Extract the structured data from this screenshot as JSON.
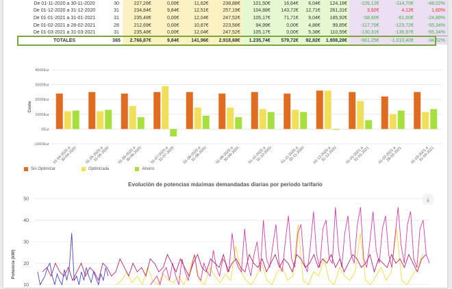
{
  "summary_table": {
    "rows": [
      {
        "cells": [
          "De 01-11-2020 a 30-11-2020",
          "30",
          "227,26€",
          "0,00€",
          "11,62€",
          "238,88€",
          "101,50€",
          "16,64€",
          "6,04€",
          "124,18€",
          "-109,12€",
          "-114,70€",
          "-48,02%"
        ],
        "neg": [
          10,
          11,
          12
        ],
        "pos": []
      },
      {
        "cells": [
          "De 01-12-2020 a 31-12-2020",
          "31",
          "234,84€",
          "9,84€",
          "12,51€",
          "257,19€",
          "104,88€",
          "143,72€",
          "12,71€",
          "261,31€",
          "3,92€",
          "4,12€",
          "1,60%"
        ],
        "neg": [],
        "pos": [
          10,
          11,
          12
        ]
      },
      {
        "cells": [
          "De 01-01-2021 a 31-01-2021",
          "31",
          "235,48€",
          "0,00€",
          "12,04€",
          "247,52€",
          "105,17€",
          "71,71€",
          "9,04€",
          "185,92€",
          "-58,60€",
          "-61,60€",
          "-24,89%"
        ],
        "neg": [
          10,
          11,
          12
        ],
        "pos": []
      },
      {
        "cells": [
          "De 01-02-2021 a 28-02-2021",
          "28",
          "212,69€",
          "0,00€",
          "10,87€",
          "223,56€",
          "94,99€",
          "0,00€",
          "4,86€",
          "99,85€",
          "-117,70€",
          "-123,72€",
          "-55,34%"
        ],
        "neg": [
          10,
          11,
          12
        ],
        "pos": []
      },
      {
        "cells": [
          "De 01-03-2021 a 31-03-2021",
          "31",
          "235,48€",
          "0,00€",
          "12,04€",
          "247,52€",
          "105,17€",
          "0,00€",
          "5,38€",
          "110,55€",
          "-130,31€",
          "-136,97€",
          "-55,34%"
        ],
        "neg": [
          10,
          11,
          12
        ],
        "pos": []
      }
    ],
    "totals": {
      "cells": [
        "TOTALES",
        "365",
        "2.766,87€",
        "9,84€",
        "141,96€",
        "2.918,68€",
        "1.235,74€",
        "579,72€",
        "92,82€",
        "1.908,28€",
        "-961,25€",
        "-1.010,40€",
        "-34,62%"
      ],
      "neg": [
        10,
        11,
        12
      ],
      "pos": []
    }
  },
  "colors": {
    "sin_optimizar": "#e06c22",
    "optimizada": "#f1df5a",
    "ahorro": "#a7df3e",
    "line_blue": "#4646c8",
    "line_yellow": "#f3dc3c",
    "line_pink": "#d33aa8",
    "line_magenta": "#b0256a"
  },
  "chart_data": [
    {
      "type": "bar",
      "title": "",
      "xlabel": "",
      "ylabel": "Coste",
      "ylim": [
        -1000,
        4000
      ],
      "y_ticks": [
        "4000Eur",
        "3000Eur",
        "2000Eur",
        "1000Eur",
        "0Eur",
        "-1000Eur"
      ],
      "categories": [
        "01-04-2020 a 30-04-2020",
        "01-05-2020 a 31-05-2020",
        "01-06-2020 a 30-06-2020",
        "01-07-2020 a 31-07-2020",
        "01-08-2020 a 31-08-2020",
        "01-09-2020 a 30-09-2020",
        "01-10-2020 a 31-10-2020",
        "01-11-2020 a 30-11-2020",
        "01-12-2020 a 31-12-2020",
        "01-01-2021 a 31-01-2021",
        "01-02-2021 a 28-02-2021",
        "01-03-2021 a 31-03-2021"
      ],
      "series": [
        {
          "name": "Sin Optimizar",
          "color_key": "sin_optimizar",
          "values": [
            2400,
            2500,
            2400,
            2500,
            2500,
            2400,
            2500,
            2400,
            2600,
            2500,
            2200,
            2500
          ]
        },
        {
          "name": "Optimizada",
          "color_key": "optimizada",
          "values": [
            1200,
            1200,
            1550,
            2900,
            1450,
            1450,
            1350,
            1300,
            2600,
            1900,
            1000,
            1150
          ]
        },
        {
          "name": "Ahorro",
          "color_key": "ahorro",
          "values": [
            1250,
            1300,
            800,
            -500,
            900,
            800,
            1150,
            1150,
            -50,
            600,
            1250,
            1350
          ]
        }
      ],
      "legend_position": "bottom-left",
      "grid": true
    },
    {
      "type": "line",
      "title": "Evolución de potencias máximas demandadas diarias por periodo tarifario",
      "xlabel": "",
      "ylabel": "Potencia (kW)",
      "ylim": [
        8,
        50
      ],
      "y_ticks": [
        "50",
        "40",
        "30",
        "20",
        "10"
      ],
      "series": [
        {
          "color_key": "line_blue",
          "values": [
            16,
            10,
            12,
            14,
            18,
            20,
            14,
            10,
            15,
            12,
            10,
            17,
            12,
            18,
            34,
            12,
            14,
            10,
            16,
            12,
            18,
            14,
            11,
            16,
            13,
            10,
            15,
            12,
            18,
            14
          ]
        },
        {
          "color_key": "line_yellow",
          "values": [
            10,
            12,
            16,
            11,
            14,
            10,
            18,
            12,
            10,
            15,
            12,
            11,
            14,
            10,
            16,
            24,
            12,
            10,
            18,
            14,
            11,
            15,
            12,
            28,
            16,
            12,
            10,
            14,
            20,
            12,
            10,
            16,
            18,
            12,
            14,
            38,
            12,
            10,
            16,
            14,
            22,
            12,
            10,
            18,
            14,
            12,
            16,
            34,
            12,
            10,
            14,
            18,
            12,
            16,
            36,
            12,
            10,
            14,
            18,
            24
          ]
        },
        {
          "color_key": "line_pink",
          "values": [
            10,
            12,
            14,
            10,
            16,
            18,
            12,
            20,
            14,
            10,
            22,
            16,
            12,
            18,
            24,
            14,
            12,
            20,
            16,
            14,
            26,
            18,
            14,
            22,
            20,
            16,
            34,
            22,
            18,
            16,
            36,
            20,
            14,
            24,
            30,
            16,
            40,
            22,
            18,
            28,
            38,
            20,
            16,
            30,
            42,
            22,
            18,
            34,
            38,
            20,
            16,
            28,
            44,
            24,
            18,
            36,
            40,
            22,
            20,
            46,
            26,
            18,
            34,
            42,
            24,
            20,
            38,
            46,
            22,
            18,
            30,
            44,
            26,
            20,
            36,
            42,
            24,
            18,
            32,
            46,
            28,
            20,
            38,
            44,
            22,
            18,
            36,
            40,
            24,
            20
          ]
        },
        {
          "color_key": "line_magenta",
          "values": [
            16,
            18,
            14,
            20,
            16,
            14,
            18,
            12,
            16,
            20,
            14,
            18,
            16,
            12,
            20,
            18,
            14,
            16,
            22,
            18,
            14,
            20,
            16,
            18,
            14,
            22,
            20,
            16,
            18,
            24,
            20,
            16,
            22,
            18,
            14,
            20,
            24,
            18,
            16,
            22,
            20,
            18,
            24,
            16,
            20,
            22,
            18,
            16,
            24,
            20,
            18,
            22,
            16,
            20,
            24,
            18,
            22,
            20,
            16,
            24,
            22,
            18,
            20,
            24,
            18,
            22,
            20,
            24,
            18,
            22,
            16,
            20,
            24,
            22,
            18,
            20,
            24,
            16,
            22,
            20,
            18,
            24,
            20,
            22,
            18,
            24,
            20,
            16,
            22,
            24
          ]
        }
      ],
      "grid": true
    }
  ]
}
